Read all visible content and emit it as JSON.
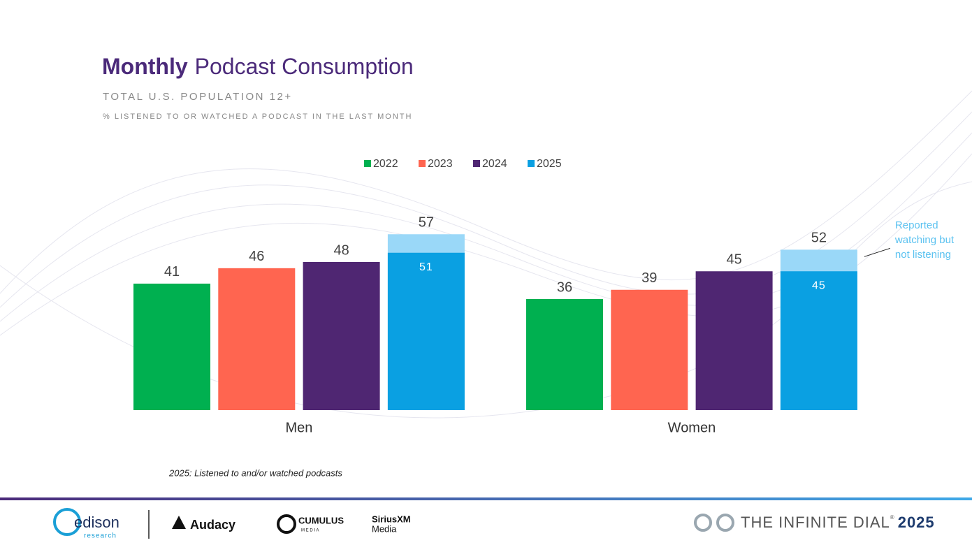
{
  "chart_data": {
    "type": "bar",
    "title_bold": "Monthly",
    "title": "Podcast Consumption",
    "subtitle": "TOTAL U.S. POPULATION 12+",
    "subtitle2": "% LISTENED TO OR WATCHED A PODCAST IN THE LAST MONTH",
    "categories": [
      "Men",
      "Women"
    ],
    "series": [
      {
        "name": "2022",
        "color": "#00b050",
        "values": [
          41,
          36
        ]
      },
      {
        "name": "2023",
        "color": "#ff6550",
        "values": [
          46,
          39
        ]
      },
      {
        "name": "2024",
        "color": "#4f2672",
        "values": [
          48,
          45
        ]
      },
      {
        "name": "2025",
        "color": "#0aa0e2",
        "values": [
          51,
          45
        ]
      }
    ],
    "overlay": {
      "color": "#9ad8f8",
      "values": [
        57,
        52
      ],
      "annotation_lines": [
        "Reported",
        "watching but",
        "not listening"
      ],
      "annotation_color": "#5bc2f0"
    },
    "ylim": [
      0,
      60
    ],
    "note": "2025: Listened to and/or watched podcasts"
  },
  "footer": {
    "logos": [
      "edison",
      "research",
      "Audacy",
      "CUMULUS",
      "M E D I A",
      "SiriusXM",
      "Media"
    ],
    "brand": "THE INFINITE DIAL",
    "brand_mark": "®",
    "brand_year": "2025"
  }
}
